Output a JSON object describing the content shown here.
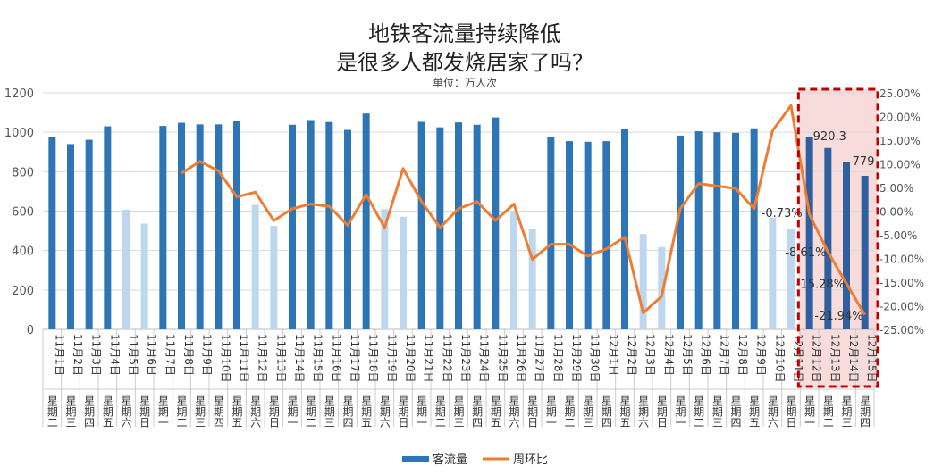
{
  "chart_data": {
    "type": "bar+line",
    "title_line1": "地铁客流量持续降低",
    "title_line2": "是很多人都发烧居家了吗？",
    "subtitle": "单位：万人次",
    "categories": [
      "11月1日",
      "11月2日",
      "11月3日",
      "11月4日",
      "11月5日",
      "11月6日",
      "11月7日",
      "11月8日",
      "11月9日",
      "11月10日",
      "11月11日",
      "11月12日",
      "11月13日",
      "11月14日",
      "11月15日",
      "11月16日",
      "11月17日",
      "11月18日",
      "11月19日",
      "11月20日",
      "11月21日",
      "11月22日",
      "11月23日",
      "11月24日",
      "11月25日",
      "11月26日",
      "11月27日",
      "11月28日",
      "11月29日",
      "11月30日",
      "12月1日",
      "12月2日",
      "12月3日",
      "12月4日",
      "12月5日",
      "12月6日",
      "12月7日",
      "12月8日",
      "12月9日",
      "12月10日",
      "12月11日",
      "12月12日",
      "12月13日",
      "12月14日",
      "12月15日"
    ],
    "weekdays": [
      "星期二",
      "星期三",
      "星期四",
      "星期五",
      "星期六",
      "星期日",
      "星期一",
      "星期二",
      "星期三",
      "星期四",
      "星期五",
      "星期六",
      "星期日",
      "星期一",
      "星期二",
      "星期三",
      "星期四",
      "星期五",
      "星期六",
      "星期日",
      "星期一",
      "星期二",
      "星期三",
      "星期四",
      "星期五",
      "星期六",
      "星期日",
      "星期一",
      "星期二",
      "星期三",
      "星期四",
      "星期五",
      "星期六",
      "星期日",
      "星期一",
      "星期二",
      "星期三",
      "星期四",
      "星期五",
      "星期六",
      "星期日",
      "星期一",
      "星期二",
      "星期三",
      "星期四"
    ],
    "series": [
      {
        "name": "客流量",
        "axis": "left",
        "type": "bar",
        "color": "#2e75b6",
        "weekend_color": "#bdd7ee",
        "values": [
          975,
          940,
          962,
          1030,
          607,
          537,
          1032,
          1048,
          1040,
          1040,
          1057,
          632,
          525,
          1038,
          1062,
          1052,
          1012,
          1095,
          610,
          572,
          1053,
          1025,
          1050,
          1038,
          1075,
          600,
          512,
          978,
          955,
          952,
          955,
          1015,
          484,
          418,
          983,
          1005,
          1000,
          997,
          1020,
          567,
          510,
          977,
          920.3,
          850,
          779
        ]
      },
      {
        "name": "周环比",
        "axis": "right",
        "type": "line",
        "color": "#ed7d31",
        "unit": "%",
        "values": [
          null,
          null,
          null,
          null,
          null,
          null,
          null,
          8.0,
          10.5,
          8.5,
          3.0,
          4.0,
          -2.0,
          0.5,
          1.5,
          1.0,
          -3.0,
          3.5,
          -3.5,
          9.0,
          2.0,
          -3.5,
          0.5,
          2.0,
          -2.0,
          1.5,
          -10.2,
          -7.0,
          -7.0,
          -9.5,
          -8.0,
          -5.5,
          -21.5,
          -18.0,
          0.5,
          5.8,
          5.3,
          4.8,
          0.5,
          17.0,
          22.3,
          -0.73,
          -8.61,
          -15.28,
          -21.94
        ]
      }
    ],
    "left_axis": {
      "min": 0,
      "max": 1200,
      "ticks": [
        "0",
        "200",
        "400",
        "600",
        "800",
        "1000",
        "1200"
      ]
    },
    "right_axis": {
      "min": -25,
      "max": 25,
      "ticks": [
        "-25.00%",
        "-20.00%",
        "-15.00%",
        "-10.00%",
        "-5.00%",
        "0.00%",
        "5.00%",
        "10.00%",
        "15.00%",
        "20.00%",
        "25.00%"
      ]
    },
    "data_labels": [
      {
        "index": 41,
        "series": "周环比",
        "text": "-0.73%"
      },
      {
        "index": 42,
        "series": "周环比",
        "text": "-8.61%"
      },
      {
        "index": 43,
        "series": "周环比",
        "text": "-15.28%"
      },
      {
        "index": 44,
        "series": "周环比",
        "text": "-21.94%"
      },
      {
        "index": 42,
        "series": "客流量",
        "text": "920.3"
      },
      {
        "index": 44,
        "series": "客流量",
        "text": "779"
      }
    ],
    "highlight": {
      "from": "12月12日",
      "to": "12月15日",
      "color": "#c00000"
    },
    "legend": [
      "客流量",
      "周环比"
    ],
    "legend_position": "bottom",
    "grid": true
  }
}
